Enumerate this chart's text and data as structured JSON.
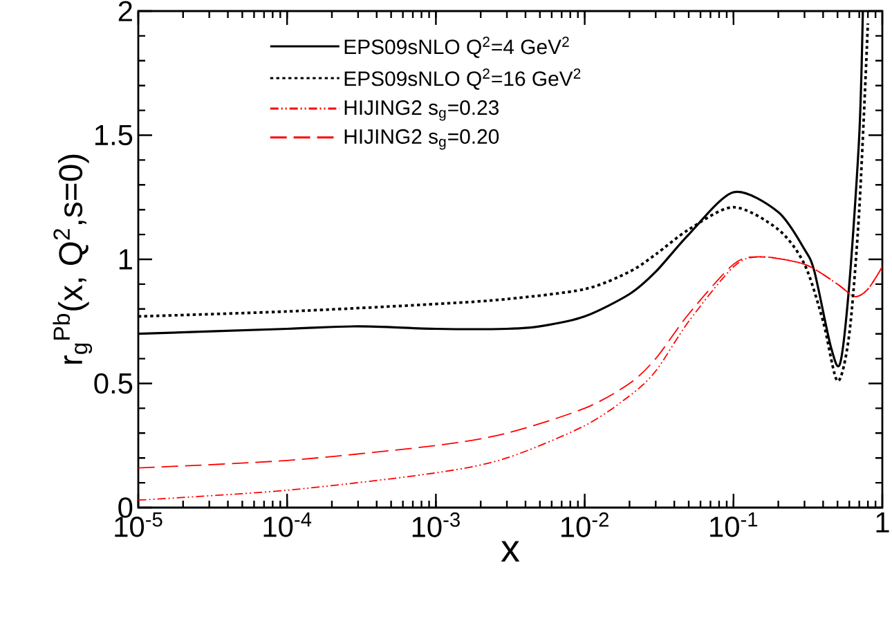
{
  "chart_data": {
    "type": "line",
    "xlabel": "x",
    "ylabel": "r$_{g}$$^{Pb}$(x, Q$^{2}$,s=0)",
    "log": "x",
    "xlim": [
      1e-05,
      1
    ],
    "ylim": [
      0,
      2
    ],
    "xticks": [
      {
        "value": 1e-05,
        "label": "10$^{-5}$"
      },
      {
        "value": 0.0001,
        "label": "10$^{-4}$"
      },
      {
        "value": 0.001,
        "label": "10$^{-3}$"
      },
      {
        "value": 0.01,
        "label": "10$^{-2}$"
      },
      {
        "value": 0.1,
        "label": "10$^{-1}$"
      },
      1
    ],
    "yticks": [
      0,
      0.5,
      1,
      1.5,
      2
    ],
    "legend": "top left",
    "grid": false,
    "series": [
      {
        "name": "EPS09sNLO Q$^{2}$=4 GeV$^{2}$",
        "color": "#000000",
        "line_style": "solid",
        "x": [
          1e-05,
          0.0001,
          0.0003,
          0.001,
          0.003,
          0.005,
          0.01,
          0.02,
          0.03,
          0.05,
          0.1,
          0.2,
          0.3,
          0.35,
          0.45,
          0.52,
          0.6,
          0.7,
          0.74
        ],
        "values": [
          0.7,
          0.72,
          0.73,
          0.72,
          0.72,
          0.73,
          0.77,
          0.86,
          0.95,
          1.1,
          1.27,
          1.19,
          1.04,
          0.95,
          0.65,
          0.58,
          0.9,
          1.5,
          2.0
        ]
      },
      {
        "name": "EPS09sNLO Q$^{2}$=16 GeV$^{2}$",
        "color": "#000000",
        "line_style": "dotted",
        "x": [
          1e-05,
          0.0001,
          0.001,
          0.003,
          0.01,
          0.02,
          0.03,
          0.05,
          0.1,
          0.2,
          0.3,
          0.4,
          0.5,
          0.6,
          0.7,
          0.8
        ],
        "values": [
          0.77,
          0.79,
          0.82,
          0.84,
          0.88,
          0.95,
          1.02,
          1.12,
          1.21,
          1.12,
          0.98,
          0.75,
          0.51,
          0.7,
          1.2,
          1.95
        ]
      },
      {
        "name": "HIJING2 s$_{g}$=0.23",
        "color": "#ff0000",
        "line_style": "dashdotdotted",
        "x": [
          1e-05,
          0.0001,
          0.001,
          0.003,
          0.01,
          0.02,
          0.03,
          0.05,
          0.1,
          0.15,
          0.3,
          0.5,
          0.65,
          0.8,
          1
        ],
        "values": [
          0.03,
          0.07,
          0.14,
          0.2,
          0.33,
          0.45,
          0.55,
          0.75,
          0.97,
          1.01,
          0.98,
          0.9,
          0.85,
          0.88,
          0.97
        ]
      },
      {
        "name": "HIJING2 s$_{g}$=0.20",
        "color": "#ff0000",
        "line_style": "dashed",
        "x": [
          1e-05,
          0.0001,
          0.001,
          0.003,
          0.01,
          0.02,
          0.03,
          0.05,
          0.1,
          0.15,
          0.3,
          0.5,
          0.65,
          0.8,
          1
        ],
        "values": [
          0.16,
          0.19,
          0.25,
          0.3,
          0.4,
          0.5,
          0.6,
          0.78,
          0.98,
          1.01,
          0.98,
          0.9,
          0.85,
          0.88,
          0.97
        ]
      }
    ]
  }
}
